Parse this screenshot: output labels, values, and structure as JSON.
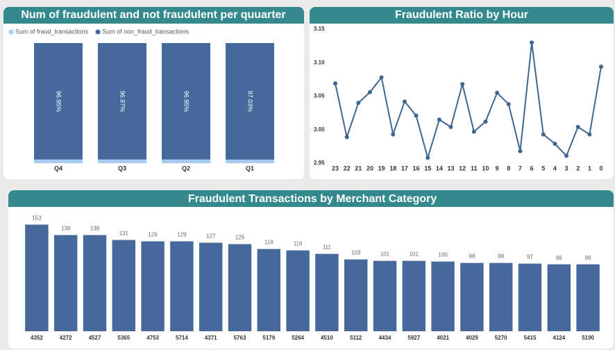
{
  "chart_data": [
    {
      "type": "stacked_bar",
      "title": "Num of fraudulent and not fraudulent per quuarter",
      "categories": [
        "Q4",
        "Q3",
        "Q2",
        "Q1"
      ],
      "legend": "top-left",
      "series": [
        {
          "name": "Sum of fraud_transactions",
          "color": "#a6cdf2",
          "values": [
            3.05,
            3.03,
            3.05,
            2.97
          ]
        },
        {
          "name": "Sum of non_fraud_transactions",
          "color": "#44699a",
          "values": [
            96.95,
            96.97,
            96.95,
            97.03
          ],
          "value_labels": [
            "96.95%",
            "96.97%",
            "96.95%",
            "97.03%"
          ]
        }
      ]
    },
    {
      "type": "line",
      "title": "Fraudulent Ratio by Hour",
      "categories": [
        "23",
        "22",
        "21",
        "20",
        "19",
        "18",
        "17",
        "16",
        "15",
        "14",
        "13",
        "12",
        "11",
        "10",
        "9",
        "8",
        "7",
        "6",
        "5",
        "4",
        "3",
        "2",
        "1",
        "0"
      ],
      "values": [
        3.069,
        2.989,
        3.04,
        3.056,
        3.078,
        2.993,
        3.042,
        3.021,
        2.958,
        3.015,
        3.004,
        3.068,
        2.997,
        3.012,
        3.055,
        3.038,
        2.968,
        3.13,
        2.993,
        2.979,
        2.961,
        3.004,
        2.993,
        3.094
      ],
      "color": "#3f6690",
      "ylim": [
        2.95,
        3.15
      ],
      "yticks": [
        2.95,
        {
          "value": 3.0,
          "label": "3.00"
        },
        3.05,
        {
          "value": 3.1,
          "label": "3.10"
        },
        3.15
      ]
    },
    {
      "type": "bar",
      "title": "Fraudulent Transactions by Merchant Category",
      "categories": [
        "4352",
        "4272",
        "4527",
        "5365",
        "4753",
        "5714",
        "4371",
        "5763",
        "5179",
        "5264",
        "4510",
        "5112",
        "4434",
        "5927",
        "4021",
        "4029",
        "5270",
        "5415",
        "4124",
        "5190"
      ],
      "values": [
        153,
        138,
        138,
        131,
        129,
        129,
        127,
        125,
        118,
        116,
        111,
        103,
        101,
        101,
        100,
        98,
        98,
        97,
        96,
        96
      ],
      "color": "#44699a"
    }
  ]
}
